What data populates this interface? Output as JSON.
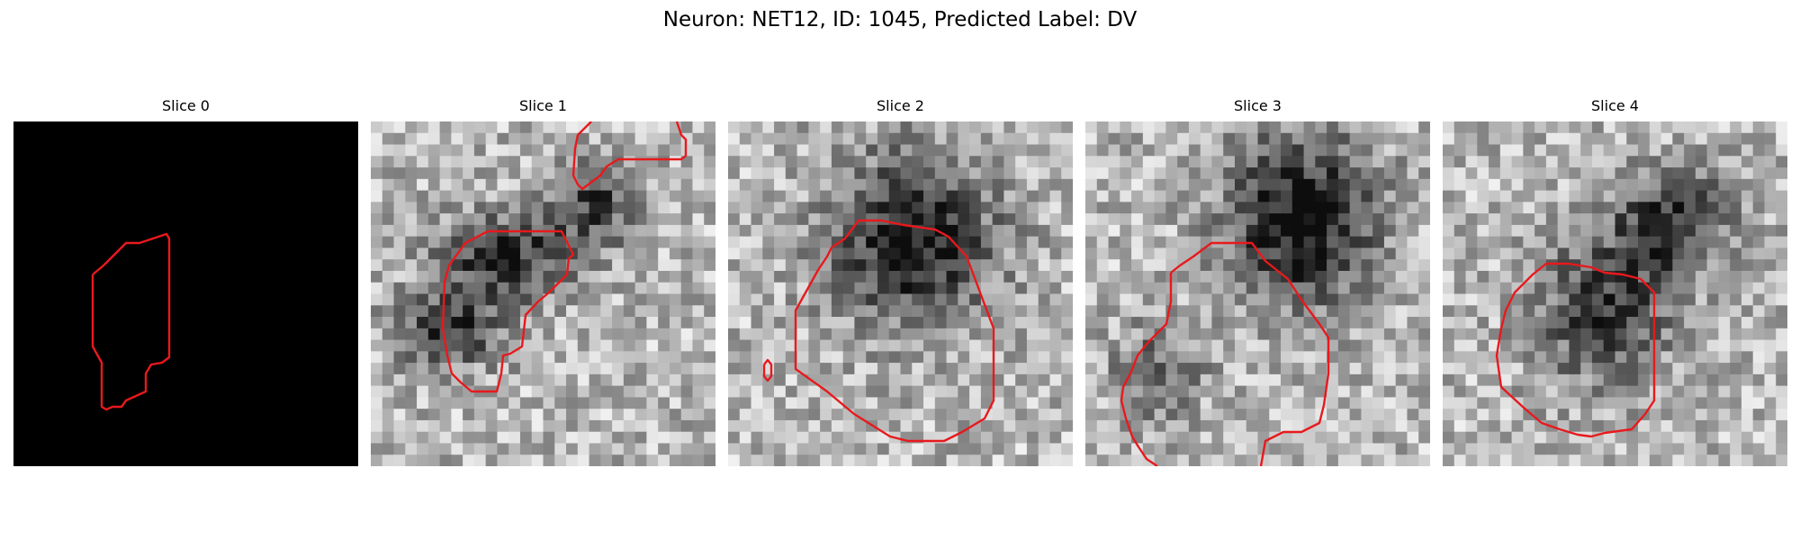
{
  "figure": {
    "title": "Neuron: NET12, ID: 1045, Predicted Label: DV"
  },
  "colors": {
    "contour": "#e8191d",
    "background": "#ffffff"
  },
  "panels": [
    {
      "title": "Slice 0"
    },
    {
      "title": "Slice 1"
    },
    {
      "title": "Slice 2"
    },
    {
      "title": "Slice 3"
    },
    {
      "title": "Slice 4"
    }
  ]
}
